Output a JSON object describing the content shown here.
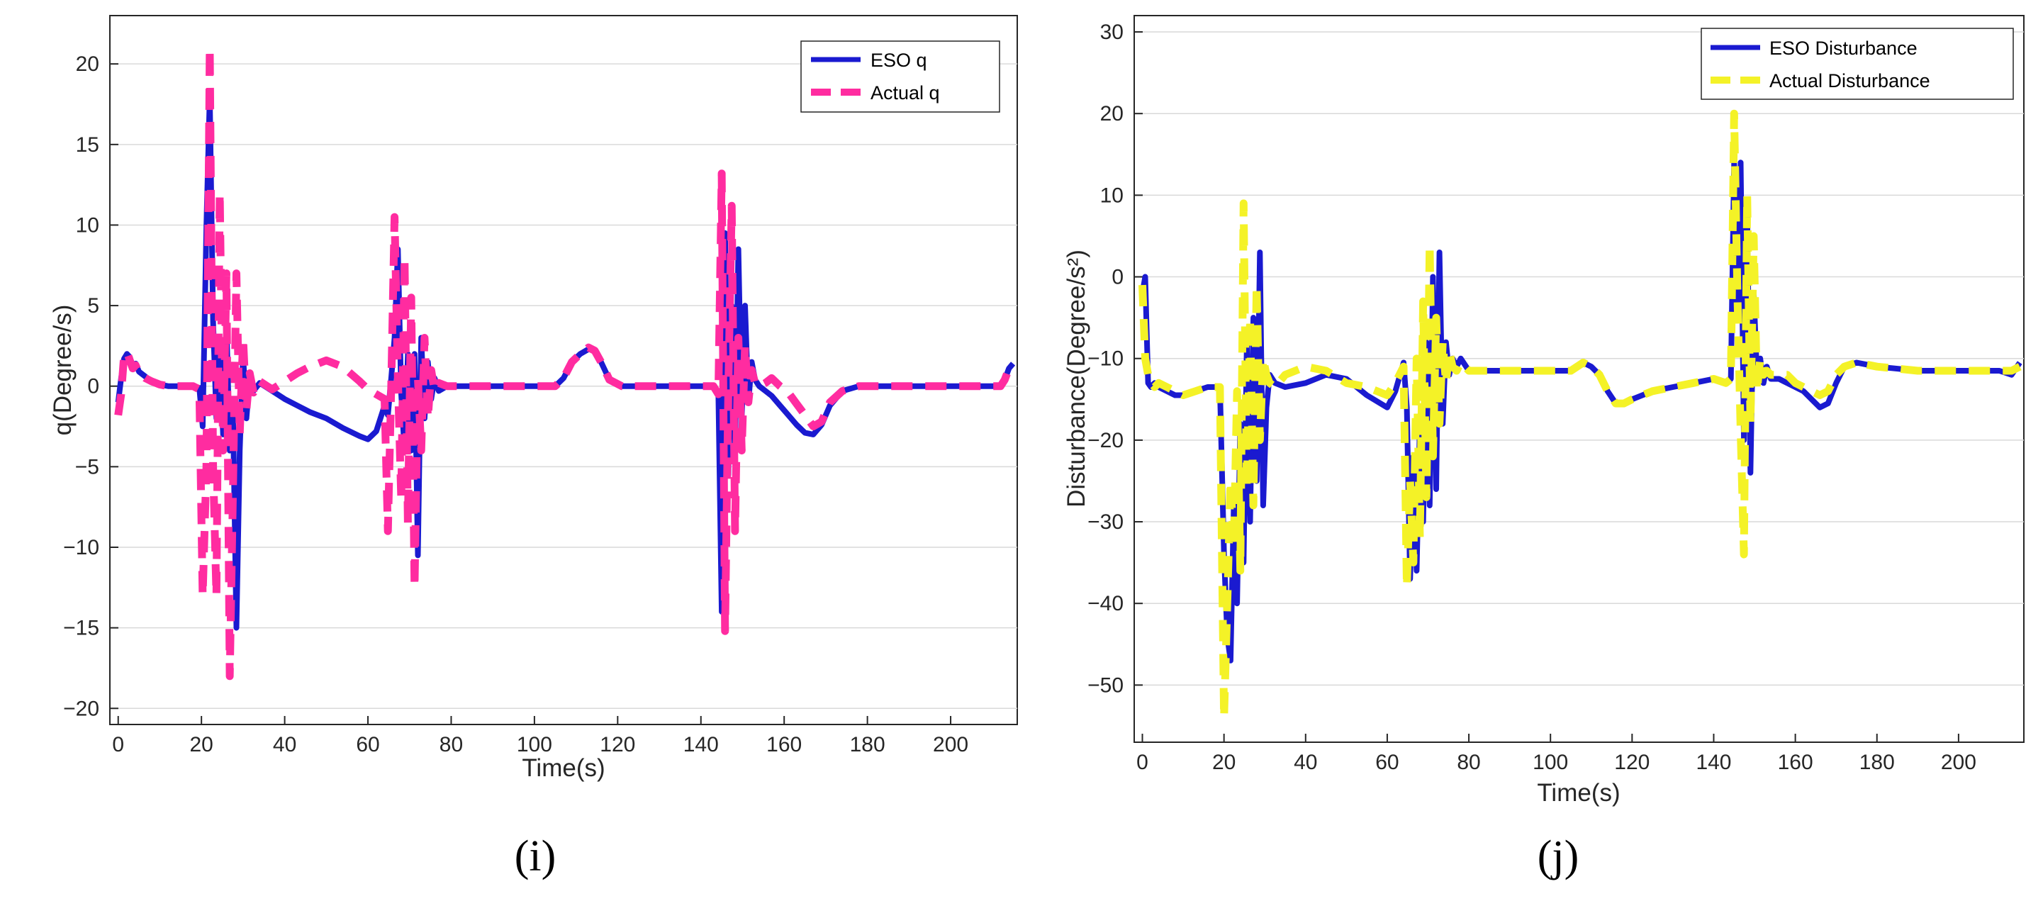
{
  "chart_data": [
    {
      "type": "line",
      "panel_label": "(i)",
      "title": "",
      "xlabel": "Time(s)",
      "ylabel": "q(Degree/s)",
      "xlim": [
        -2,
        216
      ],
      "ylim": [
        -21,
        23
      ],
      "xticks": [
        0,
        20,
        40,
        60,
        80,
        100,
        120,
        140,
        160,
        180,
        200
      ],
      "yticks": [
        -20,
        -15,
        -10,
        -5,
        0,
        5,
        10,
        15,
        20
      ],
      "grid": "horizontal",
      "legend_position": "top-right",
      "series": [
        {
          "name": "ESO q",
          "color": "#1a1ad0",
          "style": "solid",
          "x": [
            0,
            0.7,
            1.4,
            2.1,
            2.8,
            3.5,
            4.2,
            5,
            6.5,
            8,
            10,
            12,
            15,
            18,
            19.5,
            20.3,
            21.2,
            22,
            22.8,
            23.6,
            24.4,
            25.2,
            26,
            26.8,
            27.6,
            28.4,
            29.2,
            30,
            30.8,
            31.6,
            32.5,
            34,
            37,
            40,
            43,
            46,
            50,
            54,
            58,
            60,
            62,
            64,
            64.8,
            65.6,
            66.4,
            67.2,
            68,
            68.8,
            69.6,
            70.4,
            71.2,
            72,
            72.8,
            73.6,
            74.4,
            75.2,
            76,
            77,
            79,
            82,
            86,
            90,
            95,
            100,
            103,
            105,
            107,
            109,
            111,
            113,
            114.5,
            116,
            118,
            121,
            124,
            130,
            136,
            140,
            143,
            144.2,
            145,
            145.8,
            146.6,
            147.4,
            148.2,
            149,
            149.8,
            150.6,
            151.4,
            152.2,
            153,
            154,
            155.5,
            157,
            159,
            161,
            163,
            165,
            167,
            169,
            171,
            174,
            178,
            185,
            195,
            205,
            210,
            212,
            213,
            214,
            215
          ],
          "y": [
            -1,
            0.5,
            1.7,
            2,
            1.8,
            1.2,
            1.4,
            0.9,
            0.6,
            0.3,
            0.1,
            0,
            0,
            0,
            -0.1,
            -2.5,
            10,
            18,
            4,
            -2,
            2,
            -3,
            4,
            -4,
            -2,
            -15,
            -4,
            2,
            -2,
            0.5,
            -0.3,
            0.2,
            -0.3,
            -0.8,
            -1.2,
            -1.6,
            -2,
            -2.6,
            -3.1,
            -3.3,
            -2.8,
            -1.2,
            -1.8,
            0.5,
            3,
            8.5,
            -0.5,
            -4,
            2,
            -4,
            2,
            -10.5,
            3,
            -2,
            1.5,
            -0.8,
            0.5,
            -0.3,
            0,
            0,
            0,
            0,
            0,
            0,
            0,
            0,
            0.5,
            1.5,
            2,
            2.3,
            2.2,
            1.5,
            0.4,
            0,
            0,
            0,
            0,
            0,
            0,
            -0.5,
            -14,
            9.5,
            -5.5,
            5,
            -4,
            8.5,
            -2,
            5,
            -1,
            1.5,
            0.4,
            0,
            -0.3,
            -0.6,
            -1.2,
            -1.8,
            -2.4,
            -2.9,
            -3,
            -2.4,
            -1.2,
            -0.3,
            0,
            0,
            0,
            0,
            0,
            0,
            0.4,
            1.1,
            1.4
          ]
        },
        {
          "name": "Actual q",
          "color": "#ff2ca0",
          "style": "dashed",
          "x": [
            0,
            0.7,
            1.4,
            2.1,
            2.8,
            3.5,
            4.2,
            5,
            6.5,
            8,
            10,
            12,
            15,
            18,
            19.5,
            20.3,
            21.2,
            22,
            22.8,
            23.6,
            24.4,
            25.2,
            26,
            26.8,
            27.6,
            28.4,
            29.2,
            30,
            30.8,
            31.6,
            32.5,
            34,
            37,
            40,
            43,
            46,
            50,
            54,
            58,
            60,
            62,
            64,
            64.8,
            65.6,
            66.4,
            67.2,
            68,
            68.8,
            69.6,
            70.4,
            71.2,
            72,
            72.8,
            73.6,
            74.4,
            75.2,
            76,
            77,
            79,
            82,
            86,
            90,
            95,
            100,
            103,
            105,
            107,
            109,
            111,
            113,
            114.5,
            116,
            118,
            121,
            124,
            130,
            136,
            140,
            143,
            144.2,
            145,
            145.8,
            146.6,
            147.4,
            148.2,
            149,
            149.8,
            150.6,
            151.4,
            152.2,
            153,
            154,
            155.5,
            157,
            159,
            161,
            163,
            165,
            167,
            169,
            171,
            174,
            178,
            185,
            195,
            205,
            210,
            212,
            213,
            214,
            215
          ],
          "y": [
            -1.8,
            -0.5,
            1.9,
            2.1,
            1.6,
            1.1,
            1.3,
            0.8,
            0.5,
            0.3,
            0.1,
            0,
            0,
            0,
            -0.2,
            -13,
            -5,
            21,
            -5,
            -13,
            12,
            -4,
            7,
            -18,
            -6,
            7,
            -3,
            3,
            -1.5,
            0.8,
            -0.4,
            0.3,
            -0.2,
            0.3,
            0.8,
            1.2,
            1.6,
            1.2,
            0.3,
            -0.2,
            -0.5,
            -0.8,
            -9,
            0,
            10.5,
            0.5,
            -7,
            8,
            -8.5,
            5.5,
            -12.5,
            0.5,
            -4,
            3,
            -2,
            1,
            -0.3,
            0.2,
            0,
            0,
            0,
            0,
            0,
            0,
            0,
            0,
            0.5,
            1.5,
            2,
            2.4,
            2.2,
            1.5,
            0.4,
            0,
            0,
            0,
            0,
            0,
            0,
            -0.5,
            13.2,
            -15.2,
            0,
            11.2,
            -9,
            3,
            -4,
            2.5,
            -1,
            1,
            0.2,
            0,
            0.2,
            0.5,
            0,
            -0.4,
            -1.1,
            -1.8,
            -2.5,
            -2.2,
            -1,
            -0.3,
            0,
            0,
            0,
            0,
            0,
            0,
            0.4,
            1.1,
            1.4
          ]
        }
      ]
    },
    {
      "type": "line",
      "panel_label": "(j)",
      "title": "",
      "xlabel": "Time(s)",
      "ylabel": "Disturbance(Degree/s²)",
      "xlim": [
        -2,
        216
      ],
      "ylim": [
        -57,
        32
      ],
      "xticks": [
        0,
        20,
        40,
        60,
        80,
        100,
        120,
        140,
        160,
        180,
        200
      ],
      "yticks": [
        -50,
        -40,
        -30,
        -20,
        -10,
        0,
        10,
        20,
        30
      ],
      "grid": "horizontal",
      "legend_position": "top-right",
      "series": [
        {
          "name": "ESO Disturbance",
          "color": "#1a1ad0",
          "style": "solid",
          "x": [
            0,
            0.7,
            1.4,
            2.1,
            3,
            4,
            6,
            8,
            10,
            13,
            16,
            19,
            20,
            20.8,
            21.6,
            22.4,
            23.2,
            24,
            24.8,
            25.6,
            26.4,
            27.2,
            28,
            28.8,
            29.6,
            30.4,
            31.2,
            32.5,
            35,
            40,
            45,
            50,
            55,
            60,
            62,
            64,
            64.8,
            65.6,
            66.4,
            67.2,
            68,
            68.8,
            69.6,
            70.4,
            71.2,
            72,
            72.8,
            73.6,
            74.4,
            75.2,
            76,
            77,
            78,
            80,
            85,
            90,
            95,
            100,
            105,
            108,
            110,
            112,
            114,
            116,
            118,
            120,
            125,
            130,
            135,
            140,
            143,
            144.2,
            145,
            145.8,
            146.6,
            147.4,
            148.2,
            149,
            149.8,
            150.6,
            151.4,
            152.2,
            153,
            154,
            156,
            158,
            160,
            162,
            164,
            166,
            168,
            170,
            172,
            175,
            180,
            190,
            200,
            210,
            213,
            215
          ],
          "y": [
            -2,
            0,
            -13,
            -13.5,
            -13,
            -13.5,
            -14,
            -14.5,
            -14.5,
            -14,
            -13.5,
            -13.5,
            -34,
            -44,
            -47,
            -28,
            -40,
            -18,
            -35,
            -8,
            -30,
            -5,
            -25,
            3,
            -28,
            -16,
            -12,
            -13,
            -13.5,
            -13,
            -12,
            -12.5,
            -14.5,
            -16,
            -14,
            -10.5,
            -16,
            -37,
            -22,
            -36,
            -18,
            -30,
            -8,
            -28,
            0,
            -26,
            3,
            -18,
            -8,
            -12,
            -10,
            -11,
            -10,
            -11.5,
            -11.5,
            -11.5,
            -11.5,
            -11.5,
            -11.5,
            -10.5,
            -11,
            -12,
            -14,
            -15.5,
            -15.5,
            -15,
            -14,
            -13.5,
            -13,
            -12.5,
            -13,
            -12.5,
            14,
            -4,
            14,
            -20,
            8,
            -24,
            -2,
            -12,
            -10,
            -13,
            -11,
            -12.5,
            -12.5,
            -13,
            -13.5,
            -14,
            -15,
            -16,
            -15.5,
            -13,
            -11,
            -10.5,
            -11,
            -11.5,
            -11.5,
            -11.5,
            -12,
            -10.5
          ]
        },
        {
          "name": "Actual Disturbance",
          "color": "#f4f227",
          "style": "dashed",
          "x": [
            0,
            0.7,
            1.4,
            2.1,
            3,
            4,
            6,
            8,
            10,
            13,
            16,
            19,
            20,
            20.8,
            21.6,
            22.4,
            23.2,
            24,
            24.8,
            25.6,
            26.4,
            27.2,
            28,
            28.8,
            29.6,
            30.4,
            31.2,
            32.5,
            35,
            40,
            45,
            50,
            55,
            60,
            62,
            64,
            64.8,
            65.6,
            66.4,
            67.2,
            68,
            68.8,
            69.6,
            70.4,
            71.2,
            72,
            72.8,
            73.6,
            74.4,
            75.2,
            76,
            77,
            78,
            80,
            85,
            90,
            95,
            100,
            105,
            108,
            110,
            112,
            114,
            116,
            118,
            120,
            125,
            130,
            135,
            140,
            143,
            144.2,
            145,
            145.8,
            146.6,
            147.4,
            148.2,
            149,
            149.8,
            150.6,
            151.4,
            152.2,
            153,
            154,
            156,
            158,
            160,
            162,
            164,
            166,
            168,
            170,
            172,
            175,
            180,
            190,
            200,
            210,
            213,
            215
          ],
          "y": [
            -1,
            -10,
            -12,
            -13,
            -13.5,
            -13,
            -13.5,
            -14,
            -14.5,
            -14,
            -13.5,
            -13.5,
            -54,
            -40,
            -25,
            -33,
            -14,
            -36,
            9,
            -26,
            -5,
            -28,
            -1,
            -20,
            -10,
            -12,
            -13,
            -13.5,
            -12,
            -11,
            -11.5,
            -13,
            -13.5,
            -14.5,
            -13,
            -11,
            -38,
            -25,
            -35,
            -10,
            -32,
            -3,
            -27,
            4,
            -22,
            -5,
            -18,
            -8,
            -13,
            -9,
            -11,
            -11.5,
            -10.5,
            -11.5,
            -11.5,
            -11.5,
            -11.5,
            -11.5,
            -11.5,
            -10.5,
            -11,
            -12,
            -14,
            -15.5,
            -15.5,
            -15,
            -14,
            -13.5,
            -13,
            -12.5,
            -13,
            -12.5,
            20,
            -2,
            -19,
            -34,
            10,
            -18,
            5,
            -14,
            -10,
            -12,
            -11.5,
            -12,
            -12,
            -12,
            -13,
            -13.5,
            -14,
            -14.5,
            -14,
            -12,
            -11,
            -10.5,
            -11,
            -11.5,
            -11.5,
            -11.5,
            -11.5,
            -11
          ]
        }
      ]
    }
  ]
}
